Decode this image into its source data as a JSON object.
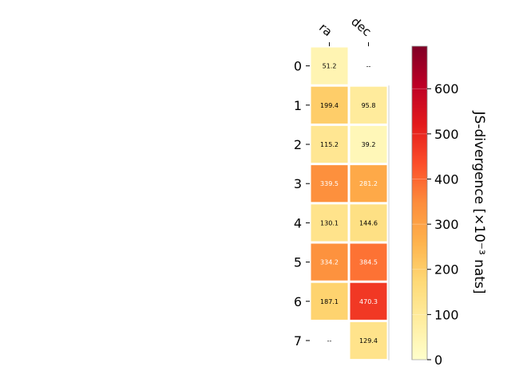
{
  "chart_data": {
    "type": "heatmap",
    "columns": [
      "ra",
      "dec"
    ],
    "rows": [
      "0",
      "1",
      "2",
      "3",
      "4",
      "5",
      "6",
      "7"
    ],
    "values": [
      [
        51.2,
        null
      ],
      [
        199.4,
        95.8
      ],
      [
        115.2,
        39.2
      ],
      [
        339.5,
        281.2
      ],
      [
        130.1,
        144.6
      ],
      [
        334.2,
        384.5
      ],
      [
        187.1,
        470.3
      ],
      [
        null,
        129.4
      ]
    ],
    "cell_labels": [
      [
        "51.2",
        "--"
      ],
      [
        "199.4",
        "95.8"
      ],
      [
        "115.2",
        "39.2"
      ],
      [
        "339.5",
        "281.2"
      ],
      [
        "130.1",
        "144.6"
      ],
      [
        "334.2",
        "384.5"
      ],
      [
        "187.1",
        "470.3"
      ],
      [
        "--",
        "129.4"
      ]
    ],
    "colorbar": {
      "label": "JS-divergence [×10⁻³ nats]",
      "range": [
        0,
        694
      ],
      "ticks": [
        0,
        100,
        200,
        300,
        400,
        500,
        600
      ],
      "colormap": "YlOrRd"
    }
  }
}
